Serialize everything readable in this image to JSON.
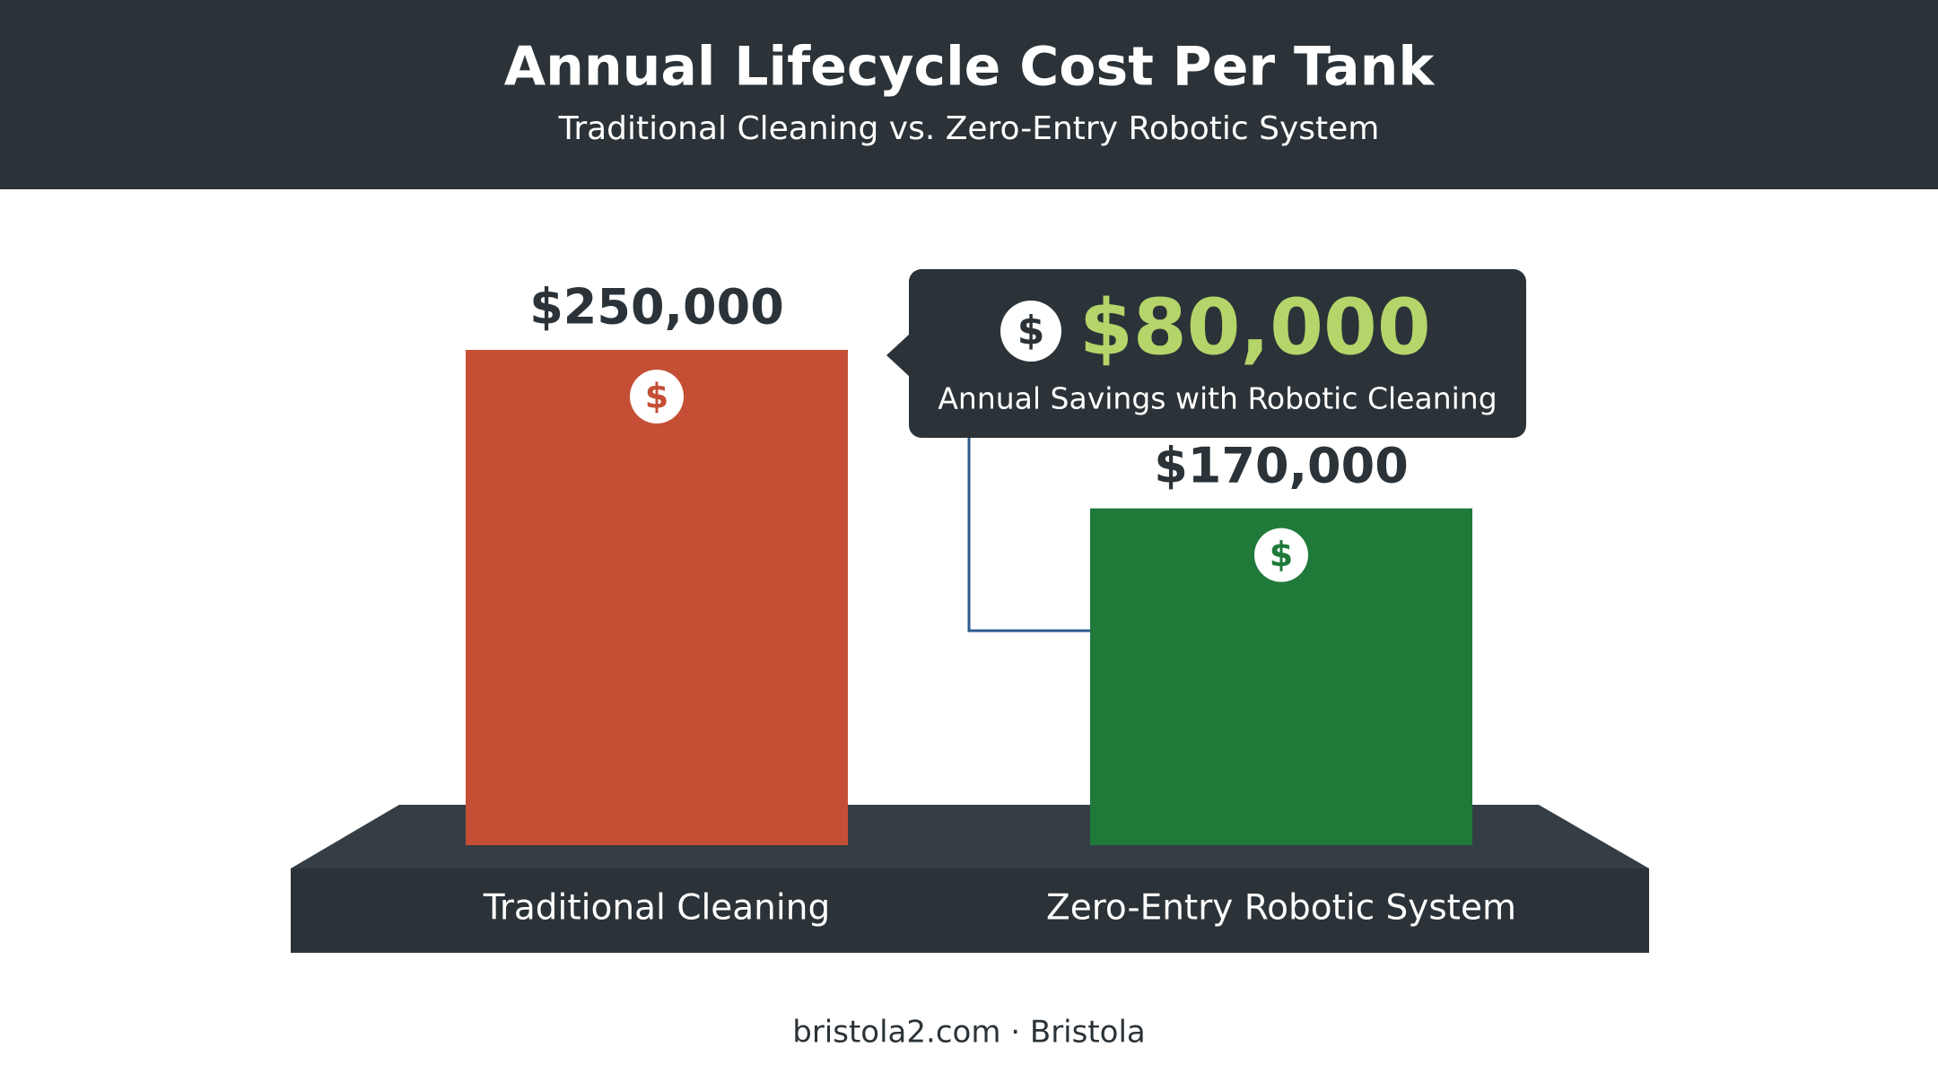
{
  "chart_data": {
    "type": "bar",
    "title": "Annual Lifecycle Cost Per Tank",
    "subtitle": "Traditional Cleaning vs. Zero-Entry Robotic System",
    "categories": [
      "Traditional Cleaning",
      "Zero-Entry Robotic System"
    ],
    "values": [
      250000,
      170000
    ],
    "value_labels": [
      "$250,000",
      "$170,000"
    ],
    "colors": [
      "#c44f35",
      "#1f7a3a"
    ],
    "annotation": {
      "label": "$80,000",
      "text": "Annual Savings with Robotic Cleaning"
    },
    "footer": "bristola2.com · Bristola"
  }
}
